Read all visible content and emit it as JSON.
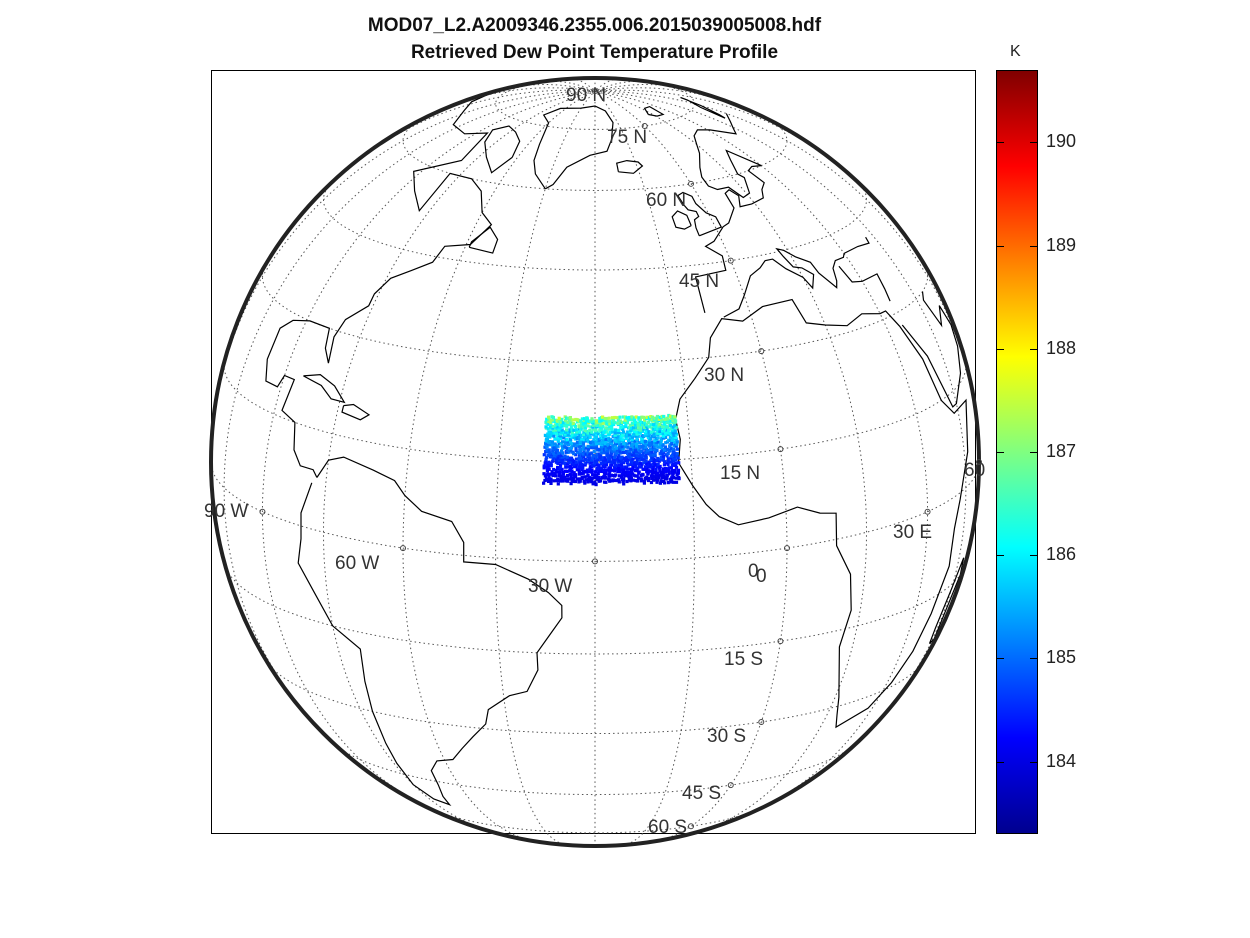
{
  "title_line1": "MOD07_L2.A2009346.2355.006.2015039005008.hdf",
  "title_line2": "Retrieved Dew Point Temperature Profile",
  "colorbar": {
    "unit": "K",
    "ticks": [
      "184",
      "185",
      "186",
      "187",
      "188",
      "189",
      "190"
    ],
    "range": [
      183.3,
      190.7
    ],
    "colormap": "jet",
    "colors": [
      "#00008f",
      "#0000ff",
      "#0080ff",
      "#00ffff",
      "#80ff80",
      "#ffff00",
      "#ff8000",
      "#ff0000",
      "#800000"
    ]
  },
  "map": {
    "projection": "orthographic",
    "center_lon": -30,
    "center_lat": 15,
    "graticule_step_deg": 15,
    "lat_labels": [
      "90 N",
      "75 N",
      "60 N",
      "45 N",
      "30 N",
      "15 N",
      "0",
      "15 S",
      "30 S",
      "45 S",
      "60 S"
    ],
    "lon_labels": [
      "90 W",
      "60 W",
      "30 W",
      "0",
      "30 E",
      "60"
    ],
    "coastline_color": "#000000",
    "data_swath": {
      "region": "Eastern tropical Atlantic",
      "lon_range": [
        -38,
        -17
      ],
      "lat_range": [
        12,
        22
      ],
      "value_range_K": [
        184,
        187.5
      ]
    }
  }
}
